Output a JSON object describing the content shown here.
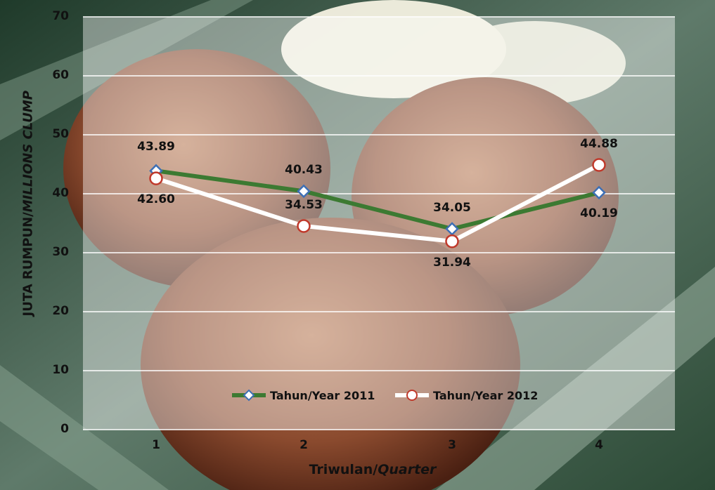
{
  "chart_data": {
    "type": "line",
    "categories": [
      "1",
      "2",
      "3",
      "4"
    ],
    "series": [
      {
        "name": "Tahun/Year 2011",
        "values": [
          43.89,
          40.43,
          34.05,
          40.19
        ],
        "color": "#3c7a32",
        "marker": "diamond",
        "marker_color": "#3d6fb5"
      },
      {
        "name": "Tahun/Year 2012",
        "values": [
          42.6,
          34.53,
          31.94,
          44.88
        ],
        "color": "#ffffff",
        "marker": "circle",
        "marker_color": "#c0392b"
      }
    ],
    "data_labels": {
      "s2011": [
        "43.89",
        "40.43",
        "34.05",
        "40.19"
      ],
      "s2012": [
        "42.60",
        "34.53",
        "31.94",
        "44.88"
      ]
    },
    "yticks": [
      "0",
      "10",
      "20",
      "30",
      "40",
      "50",
      "60",
      "70"
    ],
    "ylim": [
      0,
      70
    ],
    "xlabel_main": "Triwulan/",
    "xlabel_italic": "Quarter",
    "ylabel_main": "JUTA RUMPUN/",
    "ylabel_italic": "MILLIONS CLUMP",
    "grid": true,
    "legend_position": "bottom-center"
  }
}
